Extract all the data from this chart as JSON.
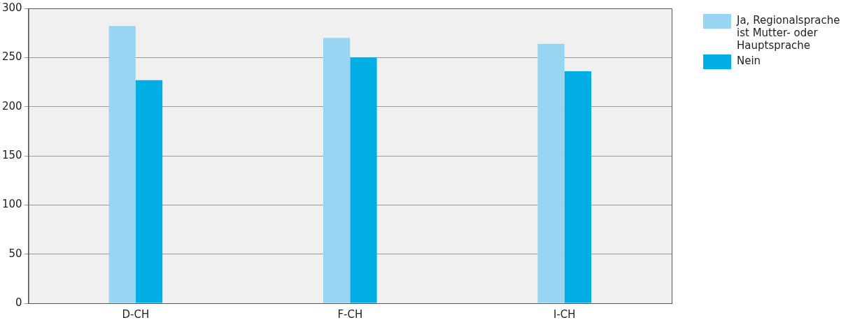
{
  "chart_data": {
    "type": "bar",
    "categories": [
      "D-CH",
      "F-CH",
      "I-CH"
    ],
    "series": [
      {
        "name": "Ja, Regionalsprache ist Mutter- oder Hauptsprache",
        "color": "#97d5f2",
        "values": [
          282,
          270,
          264
        ]
      },
      {
        "name": "Nein",
        "color": "#00aee6",
        "values": [
          227,
          250,
          236
        ]
      }
    ],
    "ylim": [
      0,
      300
    ],
    "yticks": [
      0,
      50,
      100,
      150,
      200,
      250,
      300
    ],
    "grid": "y",
    "legend": "top right"
  }
}
